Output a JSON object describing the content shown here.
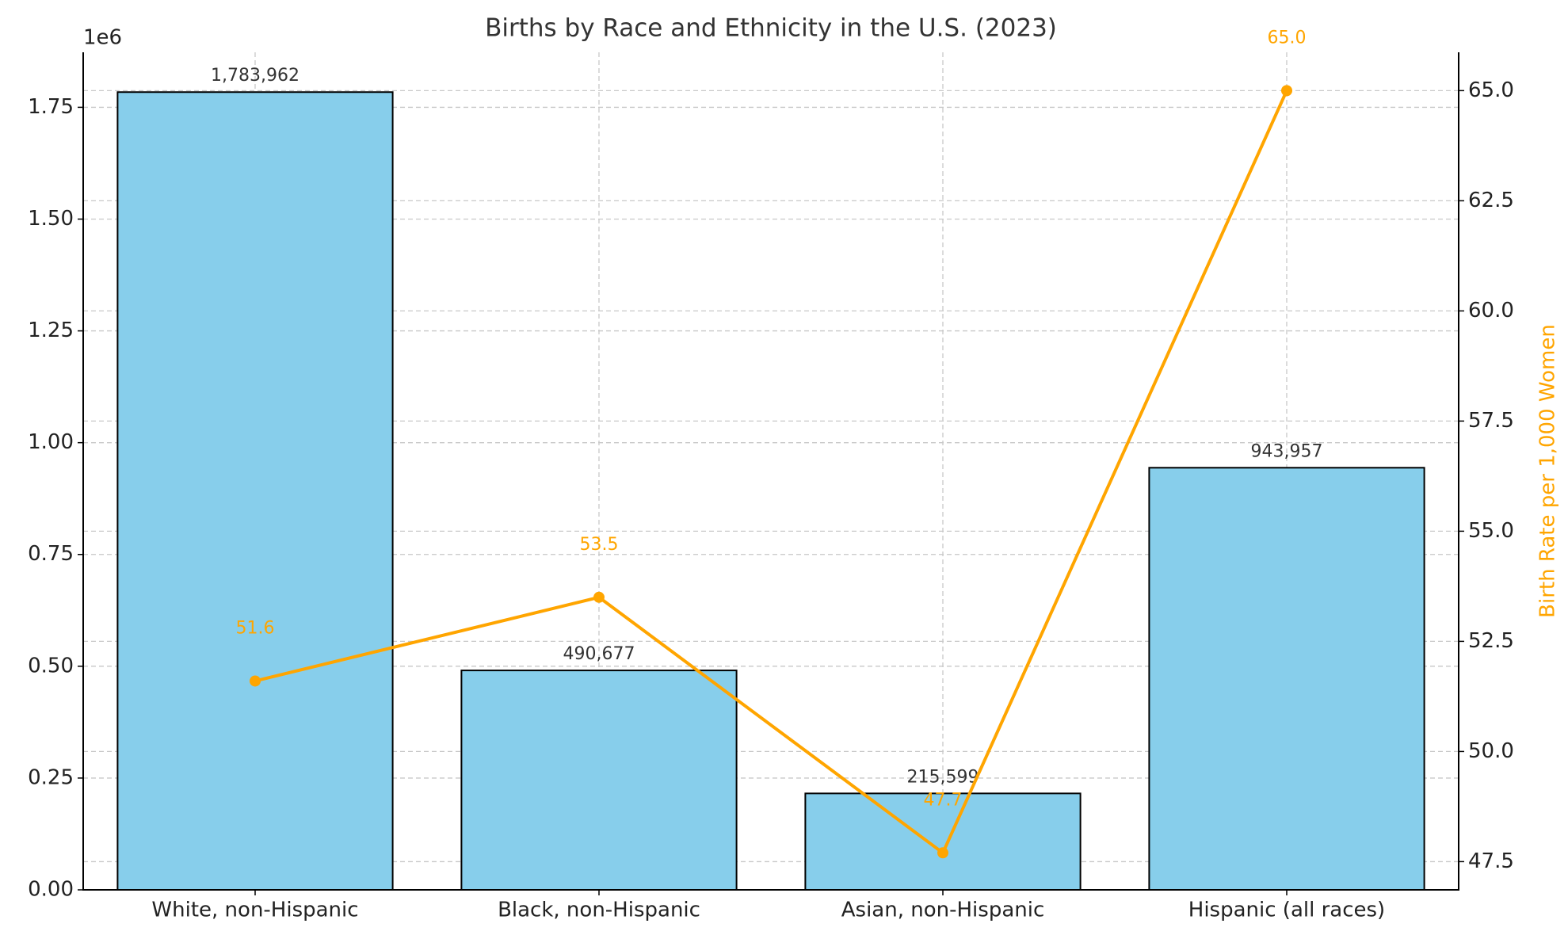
{
  "chart_data": {
    "type": "bar_line",
    "title": "Births by Race and Ethnicity in the U.S. (2023)",
    "y_offset_label": "1e6",
    "y2label": "Birth Rate per 1,000 Women",
    "categories": [
      "White, non-Hispanic",
      "Black, non-Hispanic",
      "Asian, non-Hispanic",
      "Hispanic (all races)"
    ],
    "series": [
      {
        "type": "bar",
        "color": "#87ceeb",
        "edgecolor": "#000000",
        "axis": "y",
        "values": [
          1783962,
          490677,
          215599,
          943957
        ],
        "value_labels": [
          "1,783,962",
          "490,677",
          "215,599",
          "943,957"
        ]
      },
      {
        "type": "line",
        "color": "#ffa500",
        "axis": "y2",
        "values": [
          51.6,
          53.5,
          47.7,
          65.0
        ],
        "value_labels": [
          "51.6",
          "53.5",
          "47.7",
          "65.0"
        ]
      }
    ],
    "ylim": [
      0,
      1873000
    ],
    "yticks": [
      {
        "value": 0,
        "label": "0.00"
      },
      {
        "value": 250000,
        "label": "0.25"
      },
      {
        "value": 500000,
        "label": "0.50"
      },
      {
        "value": 750000,
        "label": "0.75"
      },
      {
        "value": 1000000,
        "label": "1.00"
      },
      {
        "value": 1250000,
        "label": "1.25"
      },
      {
        "value": 1500000,
        "label": "1.50"
      },
      {
        "value": 1750000,
        "label": "1.75"
      }
    ],
    "y2lim": [
      46.86,
      65.87
    ],
    "y2ticks": [
      47.5,
      {
        "value": 50,
        "label": "50.0"
      },
      52.5,
      {
        "value": 55,
        "label": "55.0"
      },
      57.5,
      {
        "value": 60,
        "label": "60.0"
      },
      62.5,
      {
        "value": 65,
        "label": "65.0"
      }
    ],
    "grid": true
  }
}
